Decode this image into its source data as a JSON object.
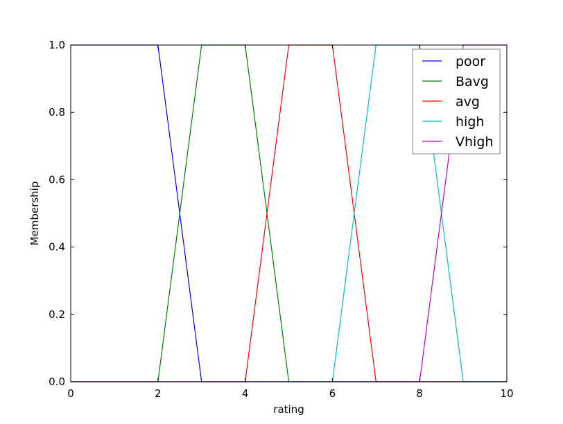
{
  "chart_data": {
    "type": "line",
    "xlabel": "rating",
    "ylabel": "Membership",
    "xlim": [
      0,
      10
    ],
    "ylim": [
      0,
      1
    ],
    "xticks": [
      "0",
      "2",
      "4",
      "6",
      "8",
      "10"
    ],
    "yticks": [
      "0.0",
      "0.2",
      "0.4",
      "0.6",
      "0.8",
      "1.0"
    ],
    "grid": false,
    "legend_position": "top-right",
    "series": [
      {
        "name": "poor",
        "color": "#0000ff",
        "x": [
          0,
          2,
          3,
          10
        ],
        "y": [
          1,
          1,
          0,
          0
        ]
      },
      {
        "name": "Bavg",
        "color": "#008000",
        "x": [
          0,
          2,
          3,
          4,
          5,
          10
        ],
        "y": [
          0,
          0,
          1,
          1,
          0,
          0
        ]
      },
      {
        "name": "avg",
        "color": "#ff0000",
        "x": [
          0,
          4,
          5,
          6,
          7,
          10
        ],
        "y": [
          0,
          0,
          1,
          1,
          0,
          0
        ]
      },
      {
        "name": "high",
        "color": "#00bfbf",
        "x": [
          0,
          6,
          7,
          8,
          9,
          10
        ],
        "y": [
          0,
          0,
          1,
          1,
          0,
          0
        ]
      },
      {
        "name": "Vhigh",
        "color": "#bf00bf",
        "x": [
          0,
          8,
          9,
          10
        ],
        "y": [
          0,
          0,
          1,
          1
        ]
      }
    ]
  }
}
